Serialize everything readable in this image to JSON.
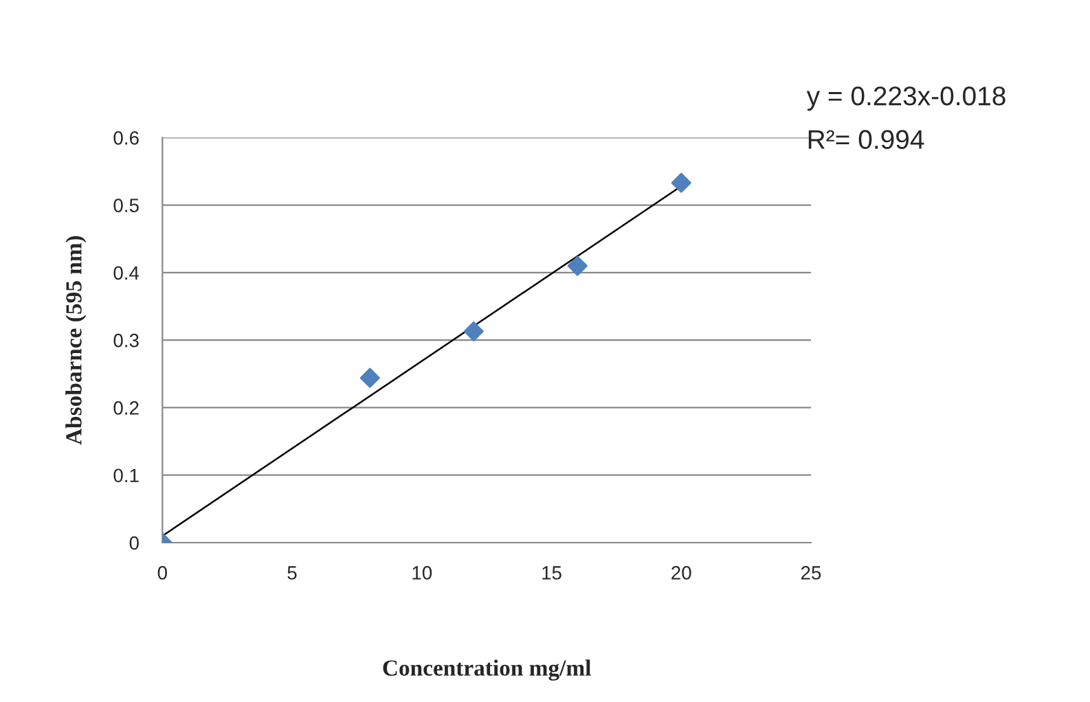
{
  "chart_data": {
    "type": "scatter",
    "xlabel": "Concentration mg/ml",
    "ylabel": "Absobarnce (595 nm)",
    "series": [
      {
        "color": "#4f81bd",
        "marker": "diamond",
        "x": [
          0,
          8,
          12,
          16,
          20
        ],
        "values": [
          0,
          0.244,
          0.313,
          0.41,
          0.533
        ]
      },
      {
        "type": "line",
        "color": "#000000",
        "marker": "none",
        "line_style": "solid",
        "x": [
          0,
          20
        ],
        "values": [
          0.01,
          0.528
        ]
      }
    ],
    "annotations": [
      "y = 0.223x-0.018",
      "R²= 0.994"
    ],
    "xlim": [
      0,
      25
    ],
    "xticks": [
      0,
      5,
      10,
      15,
      20,
      25
    ],
    "ylim": [
      0,
      0.6
    ],
    "yticks": [
      0,
      0.1,
      0.2,
      0.3,
      0.4,
      0.5,
      0.6
    ],
    "grid": "y",
    "legend": false
  }
}
